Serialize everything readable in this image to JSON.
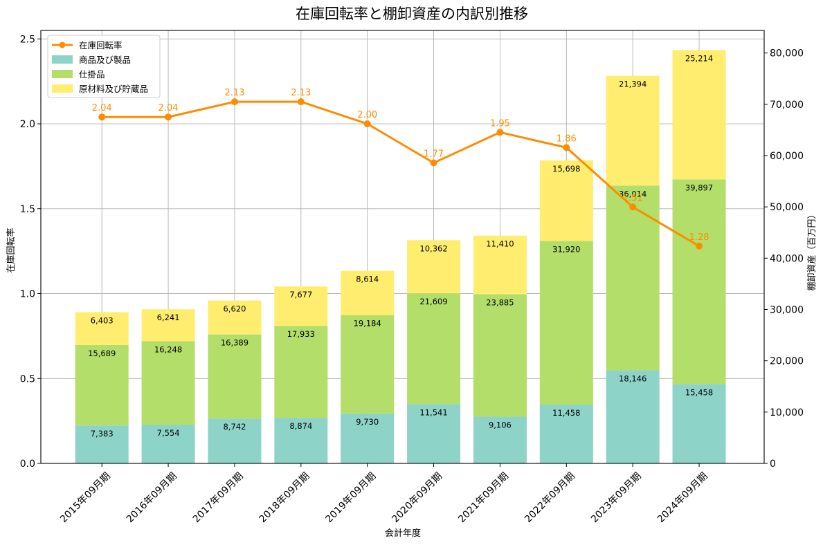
{
  "chart_data": {
    "type": "bar",
    "title": "在庫回転率と棚卸資産の内訳別推移",
    "xlabel": "会計年度",
    "ylabel_left": "在庫回転率",
    "ylabel_right": "棚卸資産（百万円）",
    "categories": [
      "2015年09月期",
      "2016年09月期",
      "2017年09月期",
      "2018年09月期",
      "2019年09月期",
      "2020年09月期",
      "2021年09月期",
      "2022年09月期",
      "2023年09月期",
      "2024年09月期"
    ],
    "ylim_left": [
      0,
      2.55
    ],
    "ylim_right": [
      0,
      84400
    ],
    "yticks_left": [
      0.0,
      0.5,
      1.0,
      1.5,
      2.0,
      2.5
    ],
    "yticks_left_labels": [
      "0.0",
      "0.5",
      "1.0",
      "1.5",
      "2.0",
      "2.5"
    ],
    "yticks_right": [
      0,
      10000,
      20000,
      30000,
      40000,
      50000,
      60000,
      70000,
      80000
    ],
    "yticks_right_labels": [
      "0",
      "10,000",
      "20,000",
      "30,000",
      "40,000",
      "50,000",
      "60,000",
      "70,000",
      "80,000"
    ],
    "grid": true,
    "legend_position": "top-left",
    "series": [
      {
        "name": "商品及び製品",
        "kind": "stacked-bar",
        "axis": "right",
        "color": "#8dd3c7",
        "values": [
          7383,
          7554,
          8742,
          8874,
          9730,
          11541,
          9106,
          11458,
          18146,
          15458
        ],
        "labels": [
          "7,383",
          "7,554",
          "8,742",
          "8,874",
          "9,730",
          "11,541",
          "9,106",
          "11,458",
          "18,146",
          "15,458"
        ]
      },
      {
        "name": "仕掛品",
        "kind": "stacked-bar",
        "axis": "right",
        "color": "#b3de69",
        "values": [
          15689,
          16248,
          16389,
          17933,
          19184,
          21609,
          23885,
          31920,
          36014,
          39897
        ],
        "labels": [
          "15,689",
          "16,248",
          "16,389",
          "17,933",
          "19,184",
          "21,609",
          "23,885",
          "31,920",
          "36,014",
          "39,897"
        ]
      },
      {
        "name": "原材料及び貯蔵品",
        "kind": "stacked-bar",
        "axis": "right",
        "color": "#ffed6f",
        "values": [
          6403,
          6241,
          6620,
          7677,
          8614,
          10362,
          11410,
          15698,
          21394,
          25214
        ],
        "labels": [
          "6,403",
          "6,241",
          "6,620",
          "7,677",
          "8,614",
          "10,362",
          "11,410",
          "15,698",
          "21,394",
          "25,214"
        ]
      },
      {
        "name": "在庫回転率",
        "kind": "line",
        "axis": "left",
        "color": "#ff8c00",
        "values": [
          2.04,
          2.04,
          2.13,
          2.13,
          2.0,
          1.77,
          1.95,
          1.86,
          1.51,
          1.28
        ],
        "labels": [
          "2.04",
          "2.04",
          "2.13",
          "2.13",
          "2.00",
          "1.77",
          "1.95",
          "1.86",
          "1.51",
          "1.28"
        ]
      }
    ]
  }
}
